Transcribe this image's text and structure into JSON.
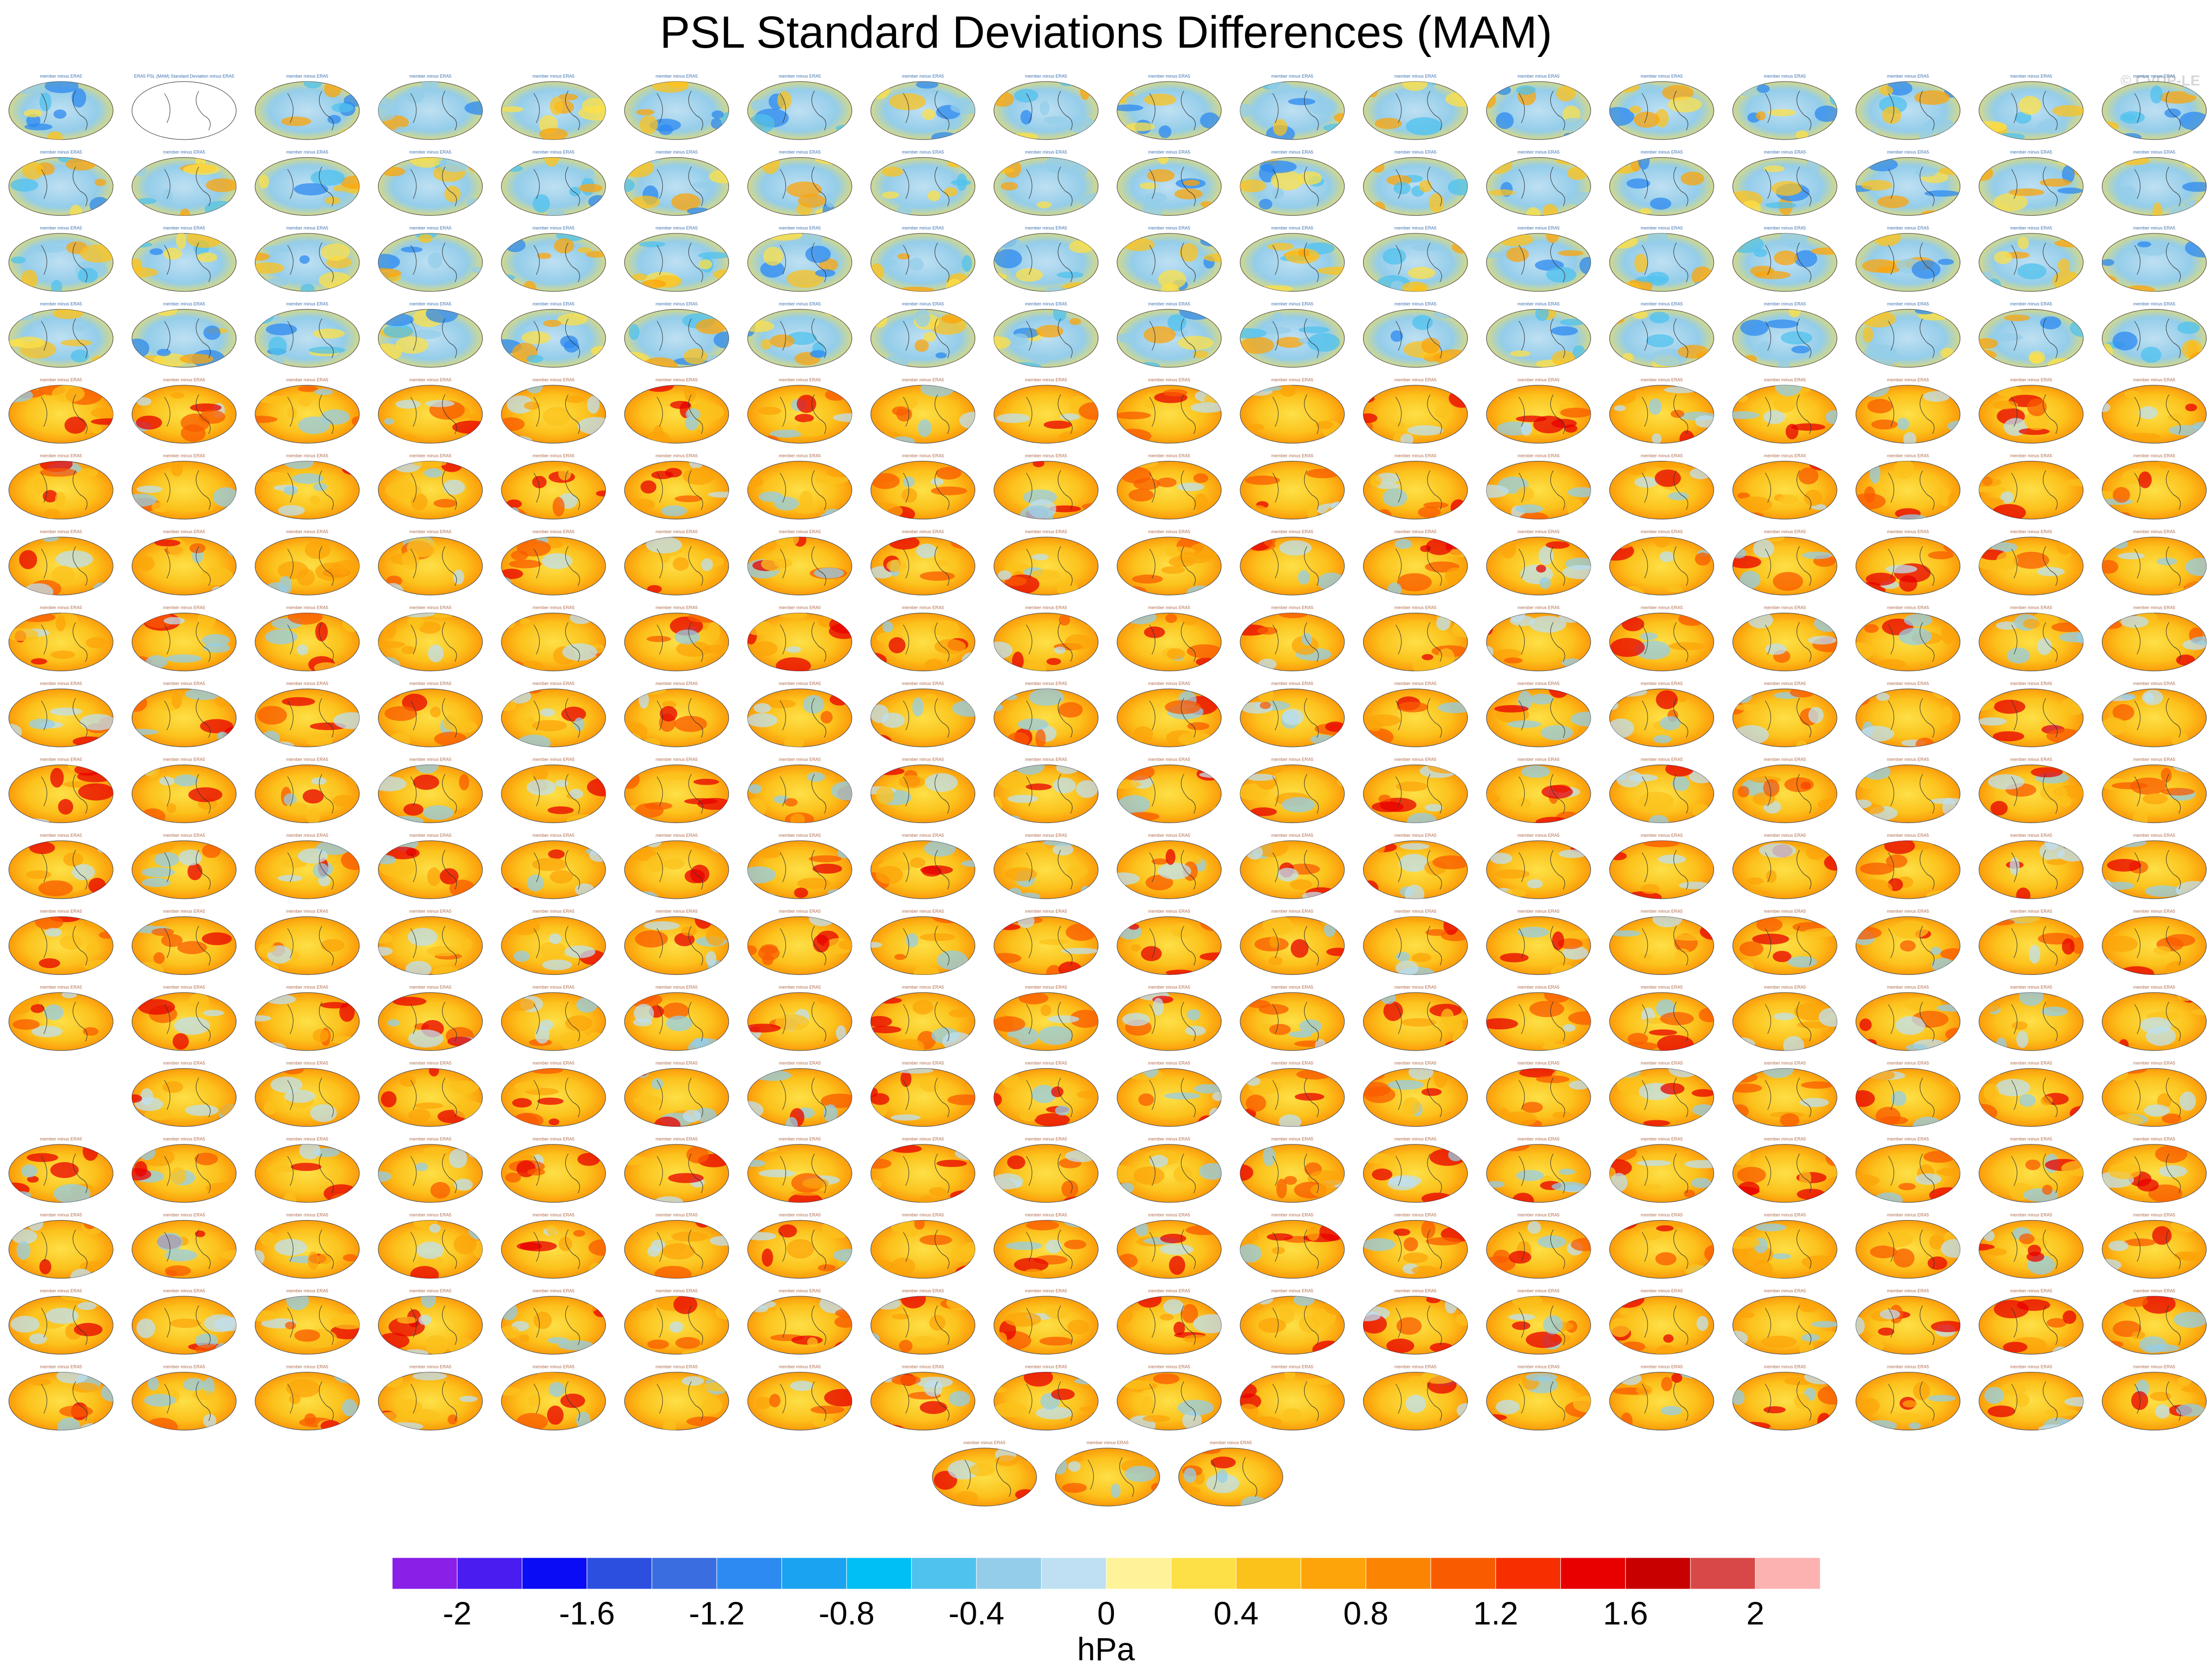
{
  "chart_data": {
    "type": "heatmap",
    "title": "PSL Standard Deviations Differences (MAM)",
    "watermark": "© CVDP-LE",
    "description_map_type": "global map panels",
    "first_panel_caption": "ERA5 PSL (MAM) Standard Deviation minus ERA5",
    "panel_caption_template": "member minus ERA5",
    "layout": {
      "rows": [
        {
          "first_col": 0,
          "count": 18
        },
        {
          "first_col": 0,
          "count": 18
        },
        {
          "first_col": 0,
          "count": 18
        },
        {
          "first_col": 0,
          "count": 18
        },
        {
          "first_col": 0,
          "count": 18
        },
        {
          "first_col": 0,
          "count": 18
        },
        {
          "first_col": 0,
          "count": 18
        },
        {
          "first_col": 0,
          "count": 18
        },
        {
          "first_col": 0,
          "count": 18
        },
        {
          "first_col": 0,
          "count": 18
        },
        {
          "first_col": 0,
          "count": 18
        },
        {
          "first_col": 0,
          "count": 18
        },
        {
          "first_col": 0,
          "count": 18
        },
        {
          "first_col": 1,
          "count": 17
        },
        {
          "first_col": 0,
          "count": 18
        },
        {
          "first_col": 0,
          "count": 18
        },
        {
          "first_col": 0,
          "count": 18
        },
        {
          "first_col": 0,
          "count": 18
        },
        {
          "first_col": 7.5,
          "count": 3
        }
      ],
      "row_tone": [
        "blue",
        "blue",
        "blue",
        "blue",
        "warm",
        "warm",
        "warm",
        "warm",
        "warm",
        "warm",
        "warm",
        "warm",
        "warm",
        "warm",
        "warm",
        "warm",
        "warm",
        "warm",
        "warm"
      ]
    },
    "colorbar": {
      "unit": "hPa",
      "levels": [
        -2.2,
        -2.0,
        -1.8,
        -1.6,
        -1.4,
        -1.2,
        -1.0,
        -0.8,
        -0.6,
        -0.4,
        -0.2,
        0,
        0.2,
        0.4,
        0.6,
        0.8,
        1.0,
        1.2,
        1.4,
        1.6,
        1.8,
        2.0,
        2.2
      ],
      "colors": [
        "#8a1fe8",
        "#4a1cf0",
        "#0a0cf5",
        "#2c4fe0",
        "#3a6ee0",
        "#2d8af0",
        "#1aa3f0",
        "#00bff5",
        "#50c2ee",
        "#94cdea",
        "#bfe0f2",
        "#fff39a",
        "#fde047",
        "#fcc21c",
        "#fca40a",
        "#fb8500",
        "#f95b00",
        "#f62f00",
        "#e80000",
        "#c80000",
        "#d94848",
        "#fdb2b2"
      ],
      "tick_values": [
        -2,
        -1.6,
        -1.2,
        -0.8,
        -0.4,
        0,
        0.4,
        0.8,
        1.2,
        1.6,
        2
      ],
      "tick_labels": [
        "-2",
        "-1.6",
        "-1.2",
        "-0.8",
        "-0.4",
        "0",
        "0.4",
        "0.8",
        "1.2",
        "1.6",
        "2"
      ]
    }
  }
}
